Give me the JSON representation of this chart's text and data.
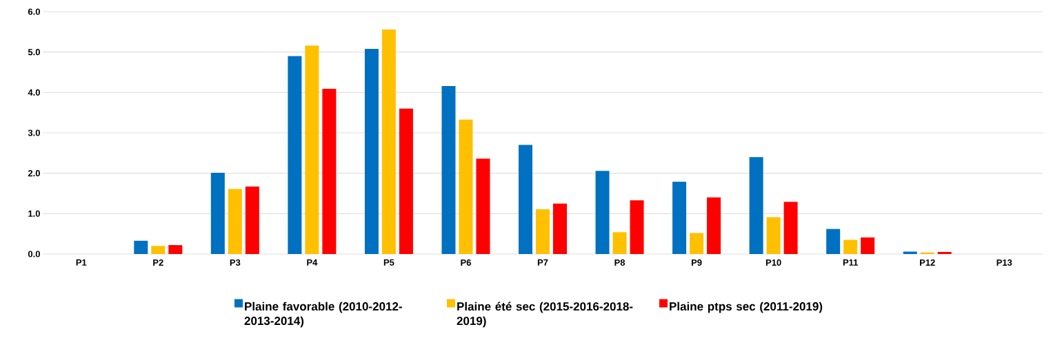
{
  "chart_data": {
    "type": "bar",
    "categories": [
      "P1",
      "P2",
      "P3",
      "P4",
      "P5",
      "P6",
      "P7",
      "P8",
      "P9",
      "P10",
      "P11",
      "P12",
      "P13"
    ],
    "series": [
      {
        "name": "Plaine favorable (2010-2012-2013-2014)",
        "color": "#0070c0",
        "values": [
          0,
          0.33,
          2.01,
          4.9,
          5.08,
          4.16,
          2.7,
          2.06,
          1.79,
          2.4,
          0.62,
          0.06,
          0
        ]
      },
      {
        "name": "Plaine été sec (2015-2016-2018-2019)",
        "color": "#ffc000",
        "values": [
          0,
          0.2,
          1.61,
          5.16,
          5.56,
          3.33,
          1.11,
          0.54,
          0.52,
          0.91,
          0.35,
          0.04,
          0
        ]
      },
      {
        "name": "Plaine ptps sec (2011-2019)",
        "color": "#ff0000",
        "values": [
          0,
          0.22,
          1.67,
          4.09,
          3.6,
          2.36,
          1.25,
          1.33,
          1.4,
          1.29,
          0.41,
          0.05,
          0
        ]
      }
    ],
    "ylim": [
      0,
      6
    ],
    "yticks": [
      {
        "value": 0,
        "label": "0.0"
      },
      {
        "value": 1,
        "label": "1.0"
      },
      {
        "value": 2,
        "label": "2.0"
      },
      {
        "value": 3,
        "label": "3.0"
      },
      {
        "value": 4,
        "label": "4.0"
      },
      {
        "value": 5,
        "label": "5.0"
      },
      {
        "value": 6,
        "label": "6.0"
      }
    ],
    "grid": "y",
    "legend": "bottom"
  }
}
